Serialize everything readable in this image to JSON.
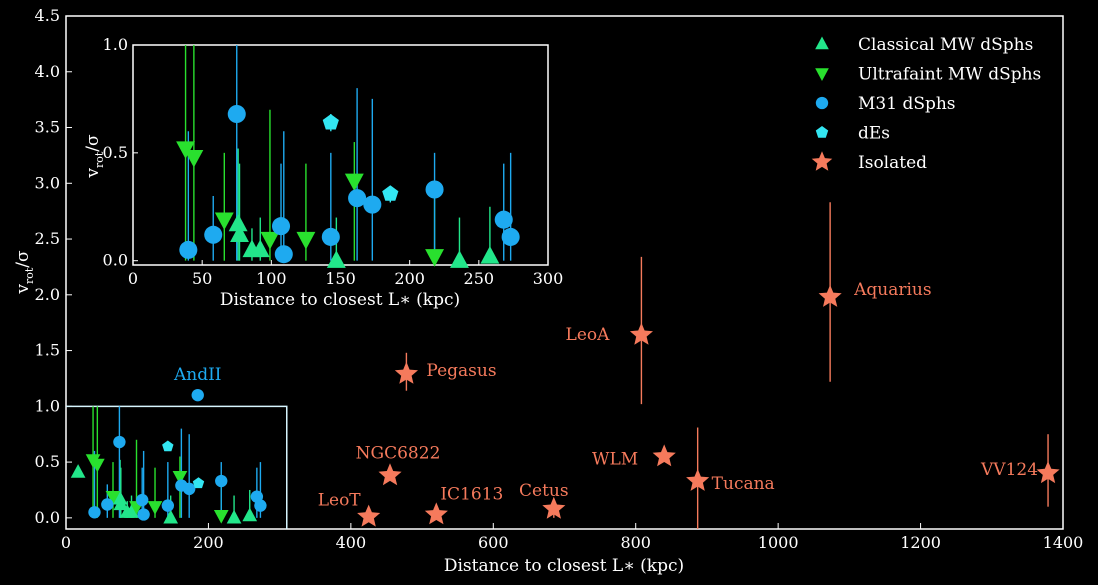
{
  "chart_data": {
    "type": "scatter",
    "xlabel": "Distance to closest L∗ (kpc)",
    "ylabel": "v_rot/σ",
    "xlim": [
      0,
      1400
    ],
    "ylim": [
      -0.1,
      4.5
    ],
    "xticks": [
      0,
      200,
      400,
      600,
      800,
      1000,
      1200,
      1400
    ],
    "yticks": [
      0.0,
      0.5,
      1.0,
      1.5,
      2.0,
      2.5,
      3.0,
      3.5,
      4.0,
      4.5
    ],
    "legend_position": "top-right",
    "colors": {
      "classical": "#22e68a",
      "ultrafaint": "#29e02e",
      "m31": "#1eaaf0",
      "des": "#33e6f2",
      "isolated": "#f57a5c",
      "box": "#d7f6ff"
    },
    "series": [
      {
        "name": "Classical MW dSphs",
        "marker": "triangle-up",
        "points": [
          {
            "x": 17,
            "y": 0.41,
            "lo": 0.41,
            "hi": 0.41
          },
          {
            "x": 76,
            "y": 0.17,
            "lo": 0.0,
            "hi": 0.52
          },
          {
            "x": 77,
            "y": 0.12,
            "lo": 0.0,
            "hi": 0.45
          },
          {
            "x": 86,
            "y": 0.05,
            "lo": 0.0,
            "hi": 0.15
          },
          {
            "x": 92,
            "y": 0.05,
            "lo": 0.0,
            "hi": 0.2
          },
          {
            "x": 147,
            "y": 0.0,
            "lo": 0.0,
            "hi": 0.2
          },
          {
            "x": 236,
            "y": 0.0,
            "lo": 0.0,
            "hi": 0.2
          },
          {
            "x": 258,
            "y": 0.02,
            "lo": 0.0,
            "hi": 0.25
          }
        ]
      },
      {
        "name": "Ultrafaint MW dSphs",
        "marker": "triangle-down",
        "points": [
          {
            "x": 38,
            "y": 0.52,
            "lo": 0.0,
            "hi": 1.0
          },
          {
            "x": 44,
            "y": 0.48,
            "lo": 0.0,
            "hi": 1.0
          },
          {
            "x": 66,
            "y": 0.19,
            "lo": 0.0,
            "hi": 0.5
          },
          {
            "x": 99,
            "y": 0.1,
            "lo": 0.0,
            "hi": 0.7
          },
          {
            "x": 125,
            "y": 0.1,
            "lo": 0.0,
            "hi": 0.45
          },
          {
            "x": 160,
            "y": 0.37,
            "lo": 0.0,
            "hi": 0.55
          },
          {
            "x": 218,
            "y": 0.02,
            "lo": 0.0,
            "hi": 0.35
          }
        ]
      },
      {
        "name": "M31 dSphs",
        "marker": "circle",
        "points": [
          {
            "x": 40,
            "y": 0.05,
            "lo": 0.0,
            "hi": 0.6
          },
          {
            "x": 58,
            "y": 0.12,
            "lo": 0.0,
            "hi": 0.3
          },
          {
            "x": 75,
            "y": 0.68,
            "lo": 0.0,
            "hi": 1.0
          },
          {
            "x": 107,
            "y": 0.16,
            "lo": 0.0,
            "hi": 0.45
          },
          {
            "x": 109,
            "y": 0.03,
            "lo": 0.0,
            "hi": 0.6
          },
          {
            "x": 143,
            "y": 0.11,
            "lo": 0.0,
            "hi": 0.5
          },
          {
            "x": 162,
            "y": 0.29,
            "lo": 0.0,
            "hi": 0.8
          },
          {
            "x": 173,
            "y": 0.26,
            "lo": 0.0,
            "hi": 0.75
          },
          {
            "x": 185,
            "y": 1.1,
            "lo": 1.1,
            "hi": 1.1
          },
          {
            "x": 218,
            "y": 0.33,
            "lo": 0.0,
            "hi": 0.5
          },
          {
            "x": 268,
            "y": 0.19,
            "lo": 0.0,
            "hi": 0.45
          },
          {
            "x": 273,
            "y": 0.11,
            "lo": 0.0,
            "hi": 0.5
          }
        ]
      },
      {
        "name": "dEs",
        "marker": "pentagon",
        "points": [
          {
            "x": 143,
            "y": 0.64,
            "lo": 0.6,
            "hi": 0.68
          },
          {
            "x": 186,
            "y": 0.31,
            "lo": 0.27,
            "hi": 0.34
          }
        ]
      },
      {
        "name": "Isolated",
        "marker": "star",
        "points": [
          {
            "label": "LeoT",
            "x": 425,
            "y": 0.01,
            "lo": 0.0,
            "hi": 0.03
          },
          {
            "label": "NGC6822",
            "x": 455,
            "y": 0.38,
            "lo": 0.35,
            "hi": 0.42
          },
          {
            "label": "IC1613",
            "x": 520,
            "y": 0.03,
            "lo": 0.0,
            "hi": 0.08
          },
          {
            "label": "Pegasus",
            "x": 478,
            "y": 1.29,
            "lo": 1.14,
            "hi": 1.48
          },
          {
            "label": "Cetus",
            "x": 685,
            "y": 0.08,
            "lo": 0.0,
            "hi": 0.15
          },
          {
            "label": "LeoA",
            "x": 808,
            "y": 1.64,
            "lo": 1.02,
            "hi": 2.34
          },
          {
            "label": "WLM",
            "x": 840,
            "y": 0.55,
            "lo": 0.52,
            "hi": 0.6
          },
          {
            "label": "Tucana",
            "x": 887,
            "y": 0.33,
            "lo": -0.1,
            "hi": 0.81
          },
          {
            "label": "Aquarius",
            "x": 1073,
            "y": 1.98,
            "lo": 1.22,
            "hi": 2.83
          },
          {
            "label": "VV124",
            "x": 1379,
            "y": 0.4,
            "lo": 0.1,
            "hi": 0.75
          }
        ]
      }
    ],
    "annotations": [
      {
        "text": "AndII",
        "x": 185,
        "y": 1.1
      }
    ],
    "inset": {
      "xlabel": "Distance to closest L∗ (kpc)",
      "ylabel": "v_rot/σ",
      "xlim": [
        0,
        300
      ],
      "ylim": [
        -0.02,
        1.0
      ],
      "xticks": [
        0,
        50,
        100,
        150,
        200,
        250,
        300
      ],
      "yticks": [
        0.0,
        0.5,
        1.0
      ],
      "box_region": {
        "x": [
          0,
          310
        ],
        "y": [
          -0.1,
          1.0
        ]
      }
    }
  }
}
